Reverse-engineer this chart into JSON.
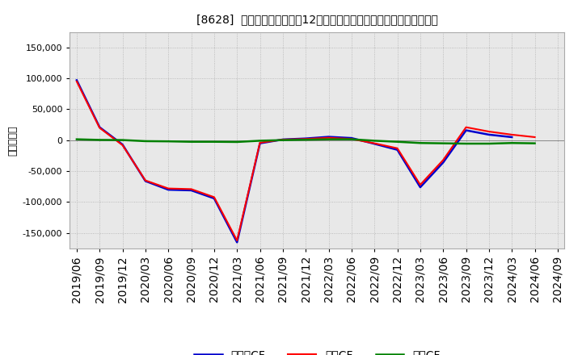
{
  "title": "[8628]  キャッシュフローの12か月移動合計の対前年同期増減額の推移",
  "ylabel": "（百万円）",
  "plot_bg": "#e8e8e8",
  "fig_bg": "#ffffff",
  "grid_color": "#b0b0b0",
  "x_labels": [
    "2019/06",
    "2019/09",
    "2019/12",
    "2020/03",
    "2020/06",
    "2020/09",
    "2020/12",
    "2021/03",
    "2021/06",
    "2021/09",
    "2021/12",
    "2022/03",
    "2022/06",
    "2022/09",
    "2022/12",
    "2023/03",
    "2023/06",
    "2023/09",
    "2023/12",
    "2024/03",
    "2024/06",
    "2024/09"
  ],
  "operating_cf": [
    95000,
    20000,
    -8000,
    -65000,
    -78000,
    -79000,
    -92000,
    -162000,
    -4000,
    1000,
    2000,
    4000,
    2000,
    -5000,
    -13000,
    -72000,
    -32000,
    21000,
    14000,
    9000,
    5000,
    null
  ],
  "investing_cf": [
    1500,
    500,
    300,
    -1500,
    -1800,
    -2500,
    -2500,
    -2800,
    -800,
    200,
    800,
    1500,
    1500,
    -800,
    -2500,
    -4500,
    -5000,
    -5500,
    -5500,
    -4500,
    -5000,
    null
  ],
  "free_cf": [
    97000,
    21000,
    -7000,
    -66000,
    -80000,
    -81000,
    -94000,
    -165000,
    -5000,
    1200,
    2800,
    5500,
    3500,
    -5800,
    -15500,
    -76000,
    -36000,
    16000,
    9000,
    5000,
    null,
    null
  ],
  "operating_color": "#ff0000",
  "investing_color": "#008000",
  "free_color": "#0000cc",
  "ylim": [
    -175000,
    175000
  ],
  "yticks": [
    -150000,
    -100000,
    -50000,
    0,
    50000,
    100000,
    150000
  ]
}
